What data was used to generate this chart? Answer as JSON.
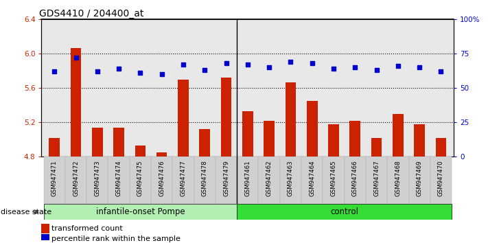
{
  "title": "GDS4410 / 204400_at",
  "samples": [
    "GSM947471",
    "GSM947472",
    "GSM947473",
    "GSM947474",
    "GSM947475",
    "GSM947476",
    "GSM947477",
    "GSM947478",
    "GSM947479",
    "GSM947461",
    "GSM947462",
    "GSM947463",
    "GSM947464",
    "GSM947465",
    "GSM947466",
    "GSM947467",
    "GSM947468",
    "GSM947469",
    "GSM947470"
  ],
  "transformed_count": [
    5.02,
    6.07,
    5.14,
    5.14,
    4.93,
    4.85,
    5.7,
    5.12,
    5.72,
    5.33,
    5.22,
    5.67,
    5.45,
    5.18,
    5.22,
    5.02,
    5.3,
    5.18,
    5.02
  ],
  "percentile_rank": [
    62,
    72,
    62,
    64,
    61,
    60,
    67,
    63,
    68,
    67,
    65,
    69,
    68,
    64,
    65,
    63,
    66,
    65,
    62
  ],
  "ylim_left": [
    4.8,
    6.4
  ],
  "ylim_right": [
    0,
    100
  ],
  "yticks_left": [
    4.8,
    5.2,
    5.6,
    6.0,
    6.4
  ],
  "yticks_right": [
    0,
    25,
    50,
    75,
    100
  ],
  "ytick_labels_right": [
    "0",
    "25",
    "50",
    "75",
    "100%"
  ],
  "grid_lines": [
    6.0,
    5.6,
    5.2
  ],
  "groups": [
    {
      "label": "infantile-onset Pompe",
      "start": 0,
      "end": 9,
      "color": "#b2f0b2"
    },
    {
      "label": "control",
      "start": 9,
      "end": 19,
      "color": "#33dd33"
    }
  ],
  "group_label_prefix": "disease state",
  "bar_color": "#cc2200",
  "dot_color": "#0000cc",
  "bar_width": 0.5,
  "background_color": "#ffffff",
  "plot_bg_color": "#e8e8e8",
  "legend_items": [
    {
      "label": "transformed count",
      "color": "#cc2200"
    },
    {
      "label": "percentile rank within the sample",
      "color": "#0000cc"
    }
  ],
  "sep_index": 9
}
